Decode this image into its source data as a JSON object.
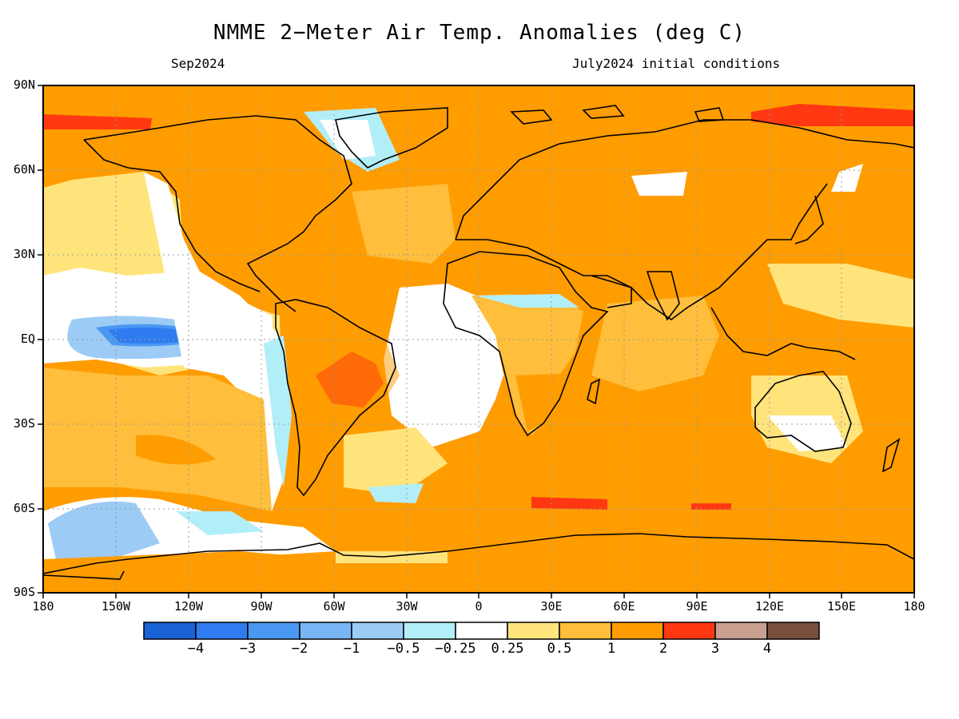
{
  "title": "NMME 2−Meter Air Temp. Anomalies (deg C)",
  "subtitle_left": "Sep2024",
  "subtitle_right": "July2024 initial conditions",
  "lat_labels": [
    "90N",
    "60N",
    "30N",
    "EQ",
    "30S",
    "60S",
    "90S"
  ],
  "lon_labels": [
    "180",
    "150W",
    "120W",
    "90W",
    "60W",
    "30W",
    "0",
    "30E",
    "60E",
    "90E",
    "120E",
    "150E",
    "180"
  ],
  "colorbar": {
    "colors": [
      "#1a62d6",
      "#2f7cf0",
      "#4b98f3",
      "#78b6f6",
      "#9ccbf6",
      "#b2eef8",
      "#ffffff",
      "#ffe47c",
      "#ffbe3b",
      "#ff9c00",
      "#ff3812",
      "#c9a090",
      "#7a4f3e"
    ],
    "labels": [
      "−4",
      "−3",
      "−2",
      "−1",
      "−0.5",
      "−0.25",
      "0.25",
      "0.5",
      "1",
      "2",
      "3",
      "4"
    ]
  },
  "palette": {
    "background": "#ff9c00",
    "grid": "#9a9a9a",
    "coast": "#000000"
  }
}
